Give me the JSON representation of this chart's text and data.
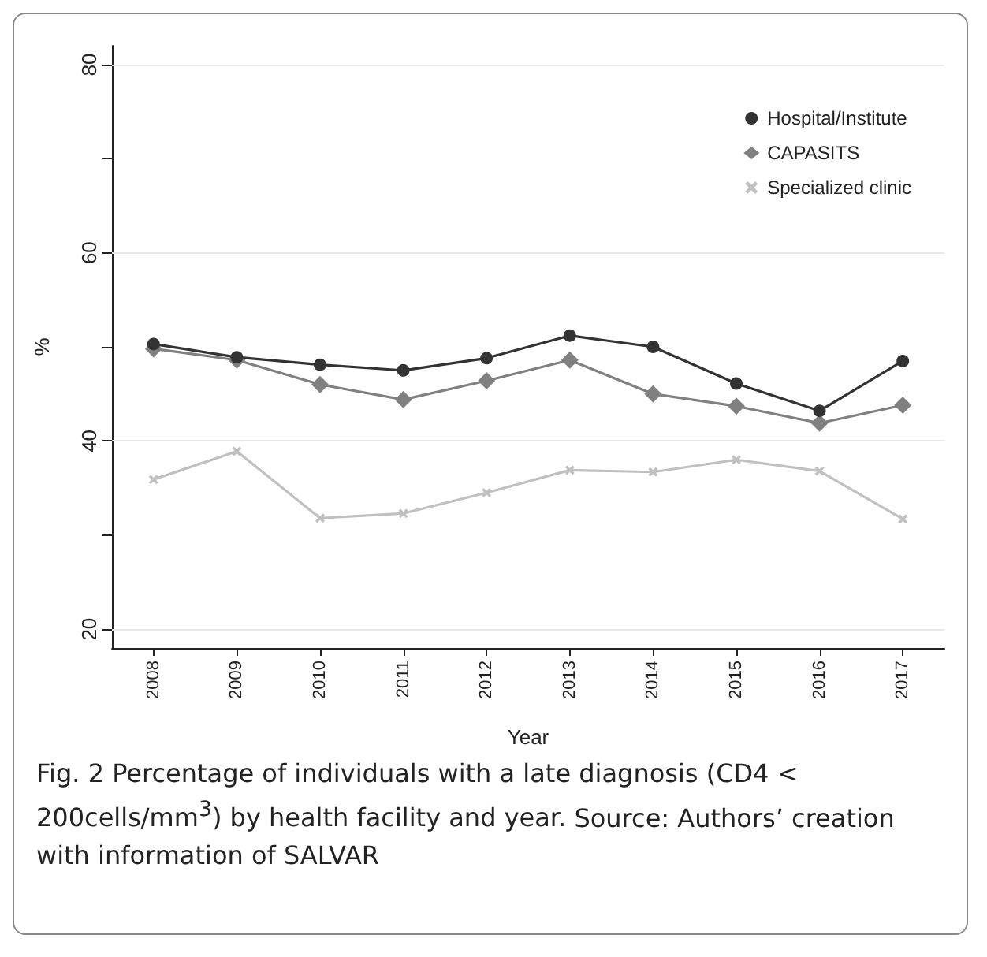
{
  "chart_data": {
    "type": "line",
    "title": "Fig. 2 Percentage of individuals with a late diagnosis (CD4 < 200cells/mm$^{3}$) by health facility and year.",
    "annotations": [
      "Source: Authors’ creation with information of SALVAR"
    ],
    "xlabel": "Year",
    "ylabel": "%",
    "categories": [
      "2008",
      "2009",
      "2010",
      "2011",
      "2012",
      "2013",
      "2014",
      "2015",
      "2016",
      "2017"
    ],
    "series": [
      {
        "name": "Hospital/Institute",
        "color": "#333333",
        "marker": "circle",
        "values": [
          50.3,
          48.9,
          48.1,
          47.5,
          48.8,
          51.2,
          50.0,
          46.1,
          43.2,
          48.5
        ]
      },
      {
        "name": "CAPASITS",
        "color": "#808080",
        "marker": "diamond",
        "values": [
          49.8,
          48.6,
          46.0,
          44.4,
          46.4,
          48.6,
          45.0,
          43.7,
          41.9,
          43.8
        ]
      },
      {
        "name": "Specialized clinic",
        "color": "#c0c0c0",
        "marker": "cross",
        "values": [
          35.9,
          38.9,
          31.8,
          32.3,
          34.5,
          36.9,
          36.7,
          38.0,
          36.8,
          31.7
        ]
      }
    ],
    "ylim": [
      18,
      82
    ],
    "yticks": [
      20,
      {
        "value": 30,
        "label": null
      },
      40,
      {
        "value": 50,
        "label": null
      },
      60,
      {
        "value": 70,
        "label": null
      },
      80
    ],
    "grid": "y",
    "legend": "top right",
    "line_style": "solid"
  }
}
